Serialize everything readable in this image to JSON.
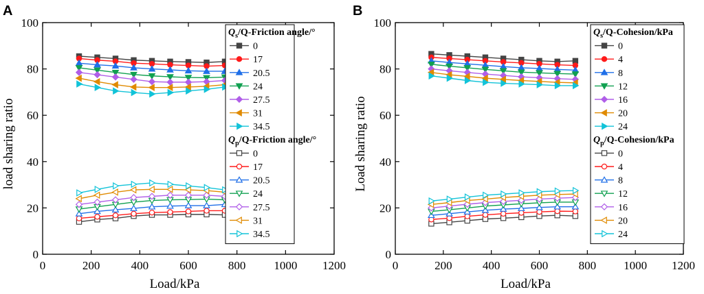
{
  "chart_data": [
    {
      "panel": "A",
      "type": "line",
      "xlabel": "Load/kPa",
      "ylabel": "load sharing ratio",
      "xlim": [
        0,
        1200
      ],
      "ylim": [
        0,
        100
      ],
      "xticks": [
        0,
        200,
        400,
        600,
        800,
        1000,
        1200
      ],
      "yticks": [
        0,
        20,
        40,
        60,
        80,
        100
      ],
      "x": [
        150,
        225,
        300,
        375,
        450,
        525,
        600,
        675,
        750
      ],
      "groups": [
        {
          "title_parts": [
            "Q",
            "s",
            "/Q-Friction angle/°"
          ],
          "marker_fill": "filled",
          "series": [
            {
              "name": "0",
              "color": "#444444",
              "marker": "square",
              "values": [
                85.5,
                85.0,
                84.5,
                83.8,
                83.5,
                83.2,
                83.0,
                82.8,
                83.2
              ]
            },
            {
              "name": "17",
              "color": "#ff1a1a",
              "marker": "circle",
              "values": [
                84.5,
                83.8,
                83.3,
                82.5,
                82.2,
                81.8,
                81.5,
                81.2,
                81.5
              ]
            },
            {
              "name": "20.5",
              "color": "#1f6fe8",
              "marker": "triangle-up",
              "values": [
                82.5,
                81.8,
                81.3,
                80.5,
                80.0,
                79.6,
                79.2,
                79.0,
                79.0
              ]
            },
            {
              "name": "24",
              "color": "#10a050",
              "marker": "triangle-down",
              "values": [
                80.5,
                79.5,
                78.5,
                77.6,
                77.0,
                76.6,
                76.3,
                76.2,
                76.5
              ]
            },
            {
              "name": "27.5",
              "color": "#b05ee8",
              "marker": "diamond",
              "values": [
                78.5,
                77.5,
                76.5,
                75.5,
                74.5,
                74.3,
                74.3,
                74.5,
                75.0
              ]
            },
            {
              "name": "31",
              "color": "#e08a00",
              "marker": "triangle-left",
              "values": [
                76.0,
                74.5,
                73.2,
                72.2,
                72.0,
                72.0,
                72.2,
                72.5,
                73.2
              ]
            },
            {
              "name": "34.5",
              "color": "#12c3d8",
              "marker": "triangle-right",
              "values": [
                73.5,
                72.0,
                70.5,
                69.8,
                69.2,
                69.8,
                70.5,
                71.2,
                72.2
              ]
            }
          ]
        },
        {
          "title_parts": [
            "Q",
            "p",
            "/Q-Friction angle/°"
          ],
          "marker_fill": "open",
          "series": [
            {
              "name": "0",
              "color": "#444444",
              "marker": "square",
              "values": [
                14.0,
                15.0,
                15.5,
                16.5,
                17.0,
                17.0,
                17.2,
                17.2,
                17.0
              ]
            },
            {
              "name": "17",
              "color": "#ff1a1a",
              "marker": "circle",
              "values": [
                15.5,
                16.2,
                16.8,
                17.5,
                18.0,
                18.2,
                18.5,
                18.8,
                18.8
              ]
            },
            {
              "name": "20.5",
              "color": "#1f6fe8",
              "marker": "triangle-up",
              "values": [
                17.5,
                18.5,
                19.2,
                19.8,
                20.5,
                20.8,
                21.0,
                21.0,
                21.5
              ]
            },
            {
              "name": "24",
              "color": "#10a050",
              "marker": "triangle-down",
              "values": [
                19.5,
                20.5,
                21.5,
                22.5,
                23.2,
                23.5,
                23.6,
                23.8,
                23.5
              ]
            },
            {
              "name": "27.5",
              "color": "#b05ee8",
              "marker": "diamond",
              "values": [
                21.5,
                22.5,
                23.5,
                24.5,
                25.0,
                25.5,
                25.5,
                25.5,
                25.0
              ]
            },
            {
              "name": "31",
              "color": "#e08a00",
              "marker": "triangle-left",
              "values": [
                24.0,
                25.5,
                26.8,
                27.8,
                28.0,
                28.0,
                27.8,
                27.5,
                26.8
              ]
            },
            {
              "name": "34.5",
              "color": "#12c3d8",
              "marker": "triangle-right",
              "values": [
                26.5,
                28.0,
                29.5,
                30.2,
                30.8,
                30.2,
                29.5,
                28.8,
                27.8
              ]
            }
          ]
        }
      ]
    },
    {
      "panel": "B",
      "type": "line",
      "xlabel": "Load/kPa",
      "ylabel": "Load sharing ratio",
      "xlim": [
        0,
        1200
      ],
      "ylim": [
        0,
        100
      ],
      "xticks": [
        0,
        200,
        400,
        600,
        800,
        1000,
        1200
      ],
      "yticks": [
        0,
        20,
        40,
        60,
        80,
        100
      ],
      "x": [
        150,
        225,
        300,
        375,
        450,
        525,
        600,
        675,
        750
      ],
      "groups": [
        {
          "title_parts": [
            "Q",
            "s",
            "/Q-Cohesion/kPa"
          ],
          "marker_fill": "filled",
          "series": [
            {
              "name": "0",
              "color": "#444444",
              "marker": "square",
              "values": [
                86.5,
                86.0,
                85.5,
                85.0,
                84.5,
                84.0,
                83.5,
                83.2,
                83.5
              ]
            },
            {
              "name": "4",
              "color": "#ff1a1a",
              "marker": "circle",
              "values": [
                85.0,
                84.5,
                84.0,
                83.5,
                83.0,
                82.6,
                82.2,
                81.8,
                81.5
              ]
            },
            {
              "name": "8",
              "color": "#1f6fe8",
              "marker": "triangle-up",
              "values": [
                83.5,
                82.8,
                82.2,
                81.6,
                81.0,
                80.5,
                80.2,
                79.8,
                79.5
              ]
            },
            {
              "name": "12",
              "color": "#10a050",
              "marker": "triangle-down",
              "values": [
                82.0,
                81.2,
                80.5,
                79.8,
                79.2,
                78.6,
                78.3,
                78.0,
                77.8
              ]
            },
            {
              "name": "16",
              "color": "#b05ee8",
              "marker": "diamond",
              "values": [
                80.0,
                79.2,
                78.5,
                77.8,
                77.2,
                76.6,
                76.2,
                75.8,
                75.5
              ]
            },
            {
              "name": "20",
              "color": "#e08a00",
              "marker": "triangle-left",
              "values": [
                78.5,
                77.5,
                76.8,
                76.0,
                75.5,
                75.0,
                74.6,
                74.2,
                74.0
              ]
            },
            {
              "name": "24",
              "color": "#12c3d8",
              "marker": "triangle-right",
              "values": [
                77.0,
                76.0,
                75.0,
                74.2,
                73.8,
                73.5,
                73.2,
                72.8,
                72.8
              ]
            }
          ]
        },
        {
          "title_parts": [
            "Q",
            "p",
            "/Q-Cohesion/kPa"
          ],
          "marker_fill": "open",
          "series": [
            {
              "name": "0",
              "color": "#444444",
              "marker": "square",
              "values": [
                13.2,
                13.8,
                14.5,
                15.2,
                15.6,
                16.0,
                16.5,
                16.8,
                16.5
              ]
            },
            {
              "name": "4",
              "color": "#ff1a1a",
              "marker": "circle",
              "values": [
                15.0,
                15.6,
                16.4,
                17.0,
                17.5,
                17.9,
                18.3,
                18.6,
                18.5
              ]
            },
            {
              "name": "8",
              "color": "#1f6fe8",
              "marker": "triangle-up",
              "values": [
                16.8,
                17.5,
                18.3,
                19.0,
                19.5,
                19.8,
                20.2,
                20.5,
                20.5
              ]
            },
            {
              "name": "12",
              "color": "#10a050",
              "marker": "triangle-down",
              "values": [
                18.5,
                19.2,
                20.0,
                20.8,
                21.3,
                21.8,
                22.2,
                22.5,
                22.5
              ]
            },
            {
              "name": "16",
              "color": "#b05ee8",
              "marker": "diamond",
              "values": [
                20.0,
                20.8,
                21.6,
                22.3,
                22.8,
                23.3,
                23.8,
                24.2,
                24.5
              ]
            },
            {
              "name": "20",
              "color": "#e08a00",
              "marker": "triangle-left",
              "values": [
                21.5,
                22.3,
                23.2,
                23.8,
                24.5,
                25.0,
                25.5,
                25.8,
                26.0
              ]
            },
            {
              "name": "24",
              "color": "#12c3d8",
              "marker": "triangle-right",
              "values": [
                23.0,
                23.8,
                24.7,
                25.5,
                26.0,
                26.5,
                27.0,
                27.3,
                27.5
              ]
            }
          ]
        }
      ]
    }
  ]
}
